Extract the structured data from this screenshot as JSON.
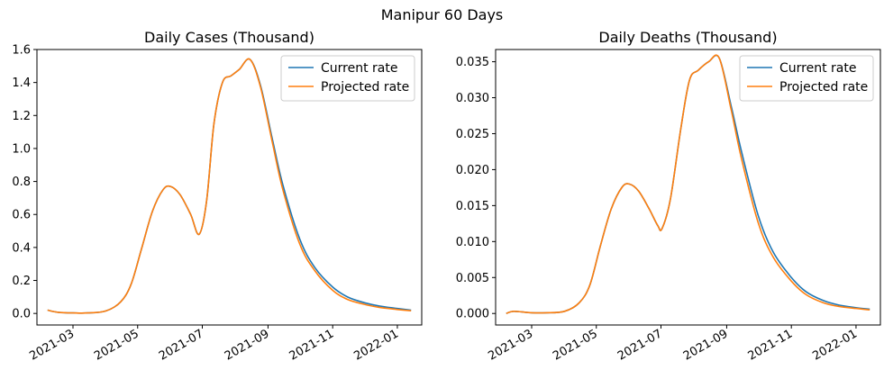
{
  "figure": {
    "title": "Manipur 60 Days"
  },
  "colors": {
    "current": "#1f77b4",
    "projected": "#ff7f0e"
  },
  "chart_data": [
    {
      "type": "line",
      "title": "Daily Cases (Thousand)",
      "xlabel": "",
      "ylabel": "",
      "x_range": [
        "2021-01-26",
        "2022-01-24"
      ],
      "ylim": [
        -0.07,
        1.6
      ],
      "y_ticks": [
        0.0,
        0.2,
        0.4,
        0.6,
        0.8,
        1.0,
        1.2,
        1.4,
        1.6
      ],
      "y_tick_labels": [
        "0.0",
        "0.2",
        "0.4",
        "0.6",
        "0.8",
        "1.0",
        "1.2",
        "1.4",
        "1.6"
      ],
      "x_ticks": [
        "2021-03-01",
        "2021-05-01",
        "2021-07-01",
        "2021-09-01",
        "2021-11-01",
        "2022-01-01"
      ],
      "x_tick_labels": [
        "2021-03",
        "2021-05",
        "2021-07",
        "2021-09",
        "2021-11",
        "2022-01"
      ],
      "grid": false,
      "legend_position": "top-right",
      "series": [
        {
          "name": "Current rate",
          "x": [
            "2021-02-05",
            "2021-02-15",
            "2021-03-01",
            "2021-03-15",
            "2021-04-01",
            "2021-04-15",
            "2021-04-25",
            "2021-05-05",
            "2021-05-15",
            "2021-05-25",
            "2021-06-01",
            "2021-06-10",
            "2021-06-20",
            "2021-06-28",
            "2021-07-05",
            "2021-07-12",
            "2021-07-20",
            "2021-07-28",
            "2021-08-05",
            "2021-08-15",
            "2021-08-25",
            "2021-09-05",
            "2021-09-15",
            "2021-10-01",
            "2021-10-15",
            "2021-11-01",
            "2021-11-15",
            "2021-12-01",
            "2021-12-15",
            "2022-01-01",
            "2022-01-14"
          ],
          "y": [
            0.02,
            0.007,
            0.003,
            0.003,
            0.015,
            0.07,
            0.18,
            0.4,
            0.62,
            0.75,
            0.77,
            0.72,
            0.6,
            0.48,
            0.68,
            1.15,
            1.4,
            1.44,
            1.48,
            1.54,
            1.38,
            1.06,
            0.78,
            0.45,
            0.28,
            0.16,
            0.1,
            0.065,
            0.045,
            0.03,
            0.02
          ]
        },
        {
          "name": "Projected rate",
          "x": [
            "2021-02-05",
            "2021-02-15",
            "2021-03-01",
            "2021-03-15",
            "2021-04-01",
            "2021-04-15",
            "2021-04-25",
            "2021-05-05",
            "2021-05-15",
            "2021-05-25",
            "2021-06-01",
            "2021-06-10",
            "2021-06-20",
            "2021-06-28",
            "2021-07-05",
            "2021-07-12",
            "2021-07-20",
            "2021-07-28",
            "2021-08-05",
            "2021-08-15",
            "2021-08-25",
            "2021-09-05",
            "2021-09-15",
            "2021-10-01",
            "2021-10-15",
            "2021-11-01",
            "2021-11-15",
            "2021-12-01",
            "2021-12-15",
            "2022-01-01",
            "2022-01-14"
          ],
          "y": [
            0.02,
            0.007,
            0.003,
            0.003,
            0.015,
            0.07,
            0.18,
            0.4,
            0.62,
            0.75,
            0.77,
            0.72,
            0.6,
            0.48,
            0.68,
            1.15,
            1.4,
            1.44,
            1.48,
            1.54,
            1.37,
            1.04,
            0.75,
            0.42,
            0.26,
            0.14,
            0.085,
            0.055,
            0.037,
            0.024,
            0.016
          ]
        }
      ]
    },
    {
      "type": "line",
      "title": "Daily Deaths (Thousand)",
      "xlabel": "",
      "ylabel": "",
      "x_range": [
        "2021-01-26",
        "2022-01-24"
      ],
      "ylim": [
        -0.0016,
        0.0367
      ],
      "y_ticks": [
        0.0,
        0.005,
        0.01,
        0.015,
        0.02,
        0.025,
        0.03,
        0.035
      ],
      "y_tick_labels": [
        "0.000",
        "0.005",
        "0.010",
        "0.015",
        "0.020",
        "0.025",
        "0.030",
        "0.035"
      ],
      "x_ticks": [
        "2021-03-01",
        "2021-05-01",
        "2021-07-01",
        "2021-09-01",
        "2021-11-01",
        "2022-01-01"
      ],
      "x_tick_labels": [
        "2021-03",
        "2021-05",
        "2021-07",
        "2021-09",
        "2021-11",
        "2022-01"
      ],
      "grid": false,
      "legend_position": "top-right",
      "series": [
        {
          "name": "Current rate",
          "x": [
            "2021-02-05",
            "2021-02-12",
            "2021-03-01",
            "2021-03-15",
            "2021-04-01",
            "2021-04-15",
            "2021-04-25",
            "2021-05-05",
            "2021-05-15",
            "2021-05-25",
            "2021-06-01",
            "2021-06-10",
            "2021-06-20",
            "2021-06-28",
            "2021-07-02",
            "2021-07-10",
            "2021-07-20",
            "2021-07-28",
            "2021-08-05",
            "2021-08-15",
            "2021-08-25",
            "2021-09-05",
            "2021-09-15",
            "2021-10-01",
            "2021-10-15",
            "2021-11-01",
            "2021-11-15",
            "2021-12-01",
            "2021-12-15",
            "2022-01-01",
            "2022-01-14"
          ],
          "y": [
            0.0,
            0.0003,
            0.0001,
            0.0001,
            0.0003,
            0.0015,
            0.004,
            0.0095,
            0.0145,
            0.0175,
            0.018,
            0.017,
            0.0145,
            0.0122,
            0.0118,
            0.016,
            0.026,
            0.0325,
            0.0338,
            0.035,
            0.0355,
            0.029,
            0.0225,
            0.0135,
            0.0085,
            0.005,
            0.003,
            0.0018,
            0.0012,
            0.0008,
            0.0006
          ]
        },
        {
          "name": "Projected rate",
          "x": [
            "2021-02-05",
            "2021-02-12",
            "2021-03-01",
            "2021-03-15",
            "2021-04-01",
            "2021-04-15",
            "2021-04-25",
            "2021-05-05",
            "2021-05-15",
            "2021-05-25",
            "2021-06-01",
            "2021-06-10",
            "2021-06-20",
            "2021-06-28",
            "2021-07-02",
            "2021-07-10",
            "2021-07-20",
            "2021-07-28",
            "2021-08-05",
            "2021-08-15",
            "2021-08-25",
            "2021-09-05",
            "2021-09-15",
            "2021-10-01",
            "2021-10-15",
            "2021-11-01",
            "2021-11-15",
            "2021-12-01",
            "2021-12-15",
            "2022-01-01",
            "2022-01-14"
          ],
          "y": [
            0.0,
            0.0003,
            0.0001,
            0.0001,
            0.0003,
            0.0015,
            0.004,
            0.0095,
            0.0145,
            0.0175,
            0.018,
            0.017,
            0.0145,
            0.0122,
            0.0118,
            0.016,
            0.026,
            0.0325,
            0.0338,
            0.035,
            0.0355,
            0.0285,
            0.0215,
            0.0125,
            0.0078,
            0.0045,
            0.0026,
            0.0015,
            0.001,
            0.0007,
            0.0005
          ]
        }
      ]
    }
  ]
}
